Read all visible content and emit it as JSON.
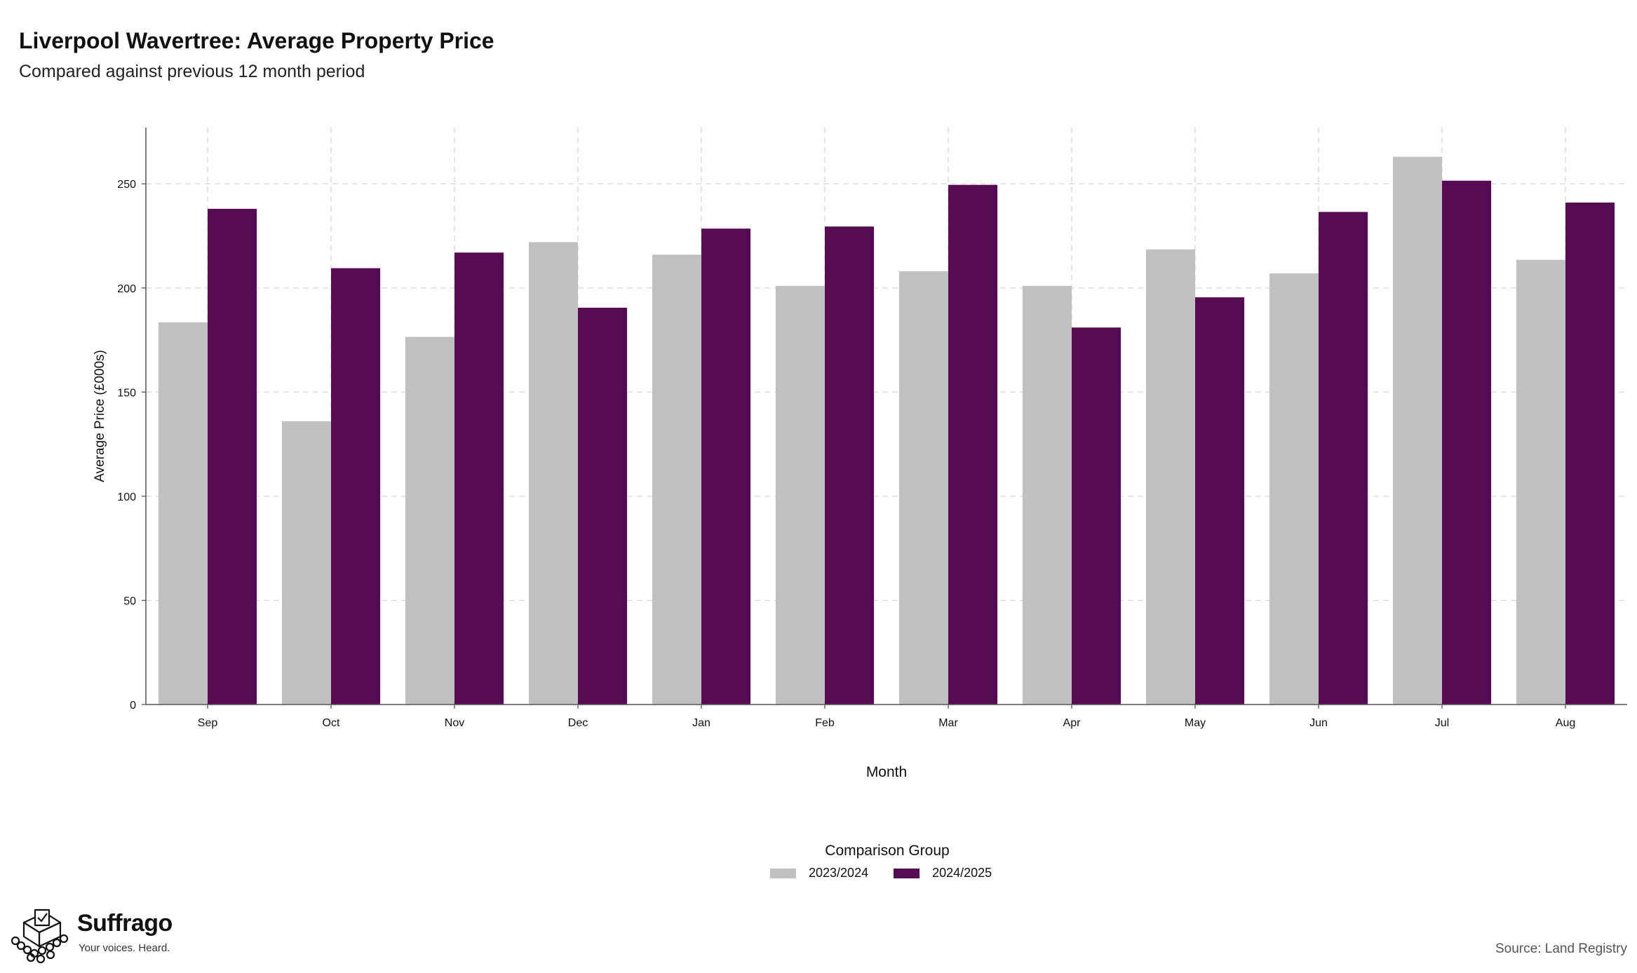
{
  "header": {
    "title": "Liverpool Wavertree: Average Property Price",
    "subtitle": "Compared against previous 12 month period"
  },
  "legend": {
    "title": "Comparison Group",
    "items": [
      {
        "label": "2023/2024",
        "color": "#c0c0c0"
      },
      {
        "label": "2024/2025",
        "color": "#570b52"
      }
    ]
  },
  "branding": {
    "name": "Suffrago",
    "tagline": "Your voices. Heard.",
    "icon": "ballot-box-icon"
  },
  "source": "Source: Land Registry",
  "chart_data": {
    "type": "bar",
    "xlabel": "Month",
    "ylabel": "Average Price (£000s)",
    "ylim": [
      0,
      277
    ],
    "yticks": [
      0,
      50,
      100,
      150,
      200,
      250
    ],
    "grid": true,
    "legend_position": "bottom",
    "categories": [
      "Sep",
      "Oct",
      "Nov",
      "Dec",
      "Jan",
      "Feb",
      "Mar",
      "Apr",
      "May",
      "Jun",
      "Jul",
      "Aug"
    ],
    "series": [
      {
        "name": "2023/2024",
        "color": "#c0c0c0",
        "values": [
          183.5,
          136,
          176.5,
          222,
          216,
          201,
          208,
          201,
          218.5,
          207,
          263,
          213.5
        ]
      },
      {
        "name": "2024/2025",
        "color": "#570b52",
        "values": [
          238,
          209.5,
          217,
          190.5,
          228.5,
          229.5,
          249.5,
          181,
          195.5,
          236.5,
          251.5,
          241
        ]
      }
    ]
  }
}
